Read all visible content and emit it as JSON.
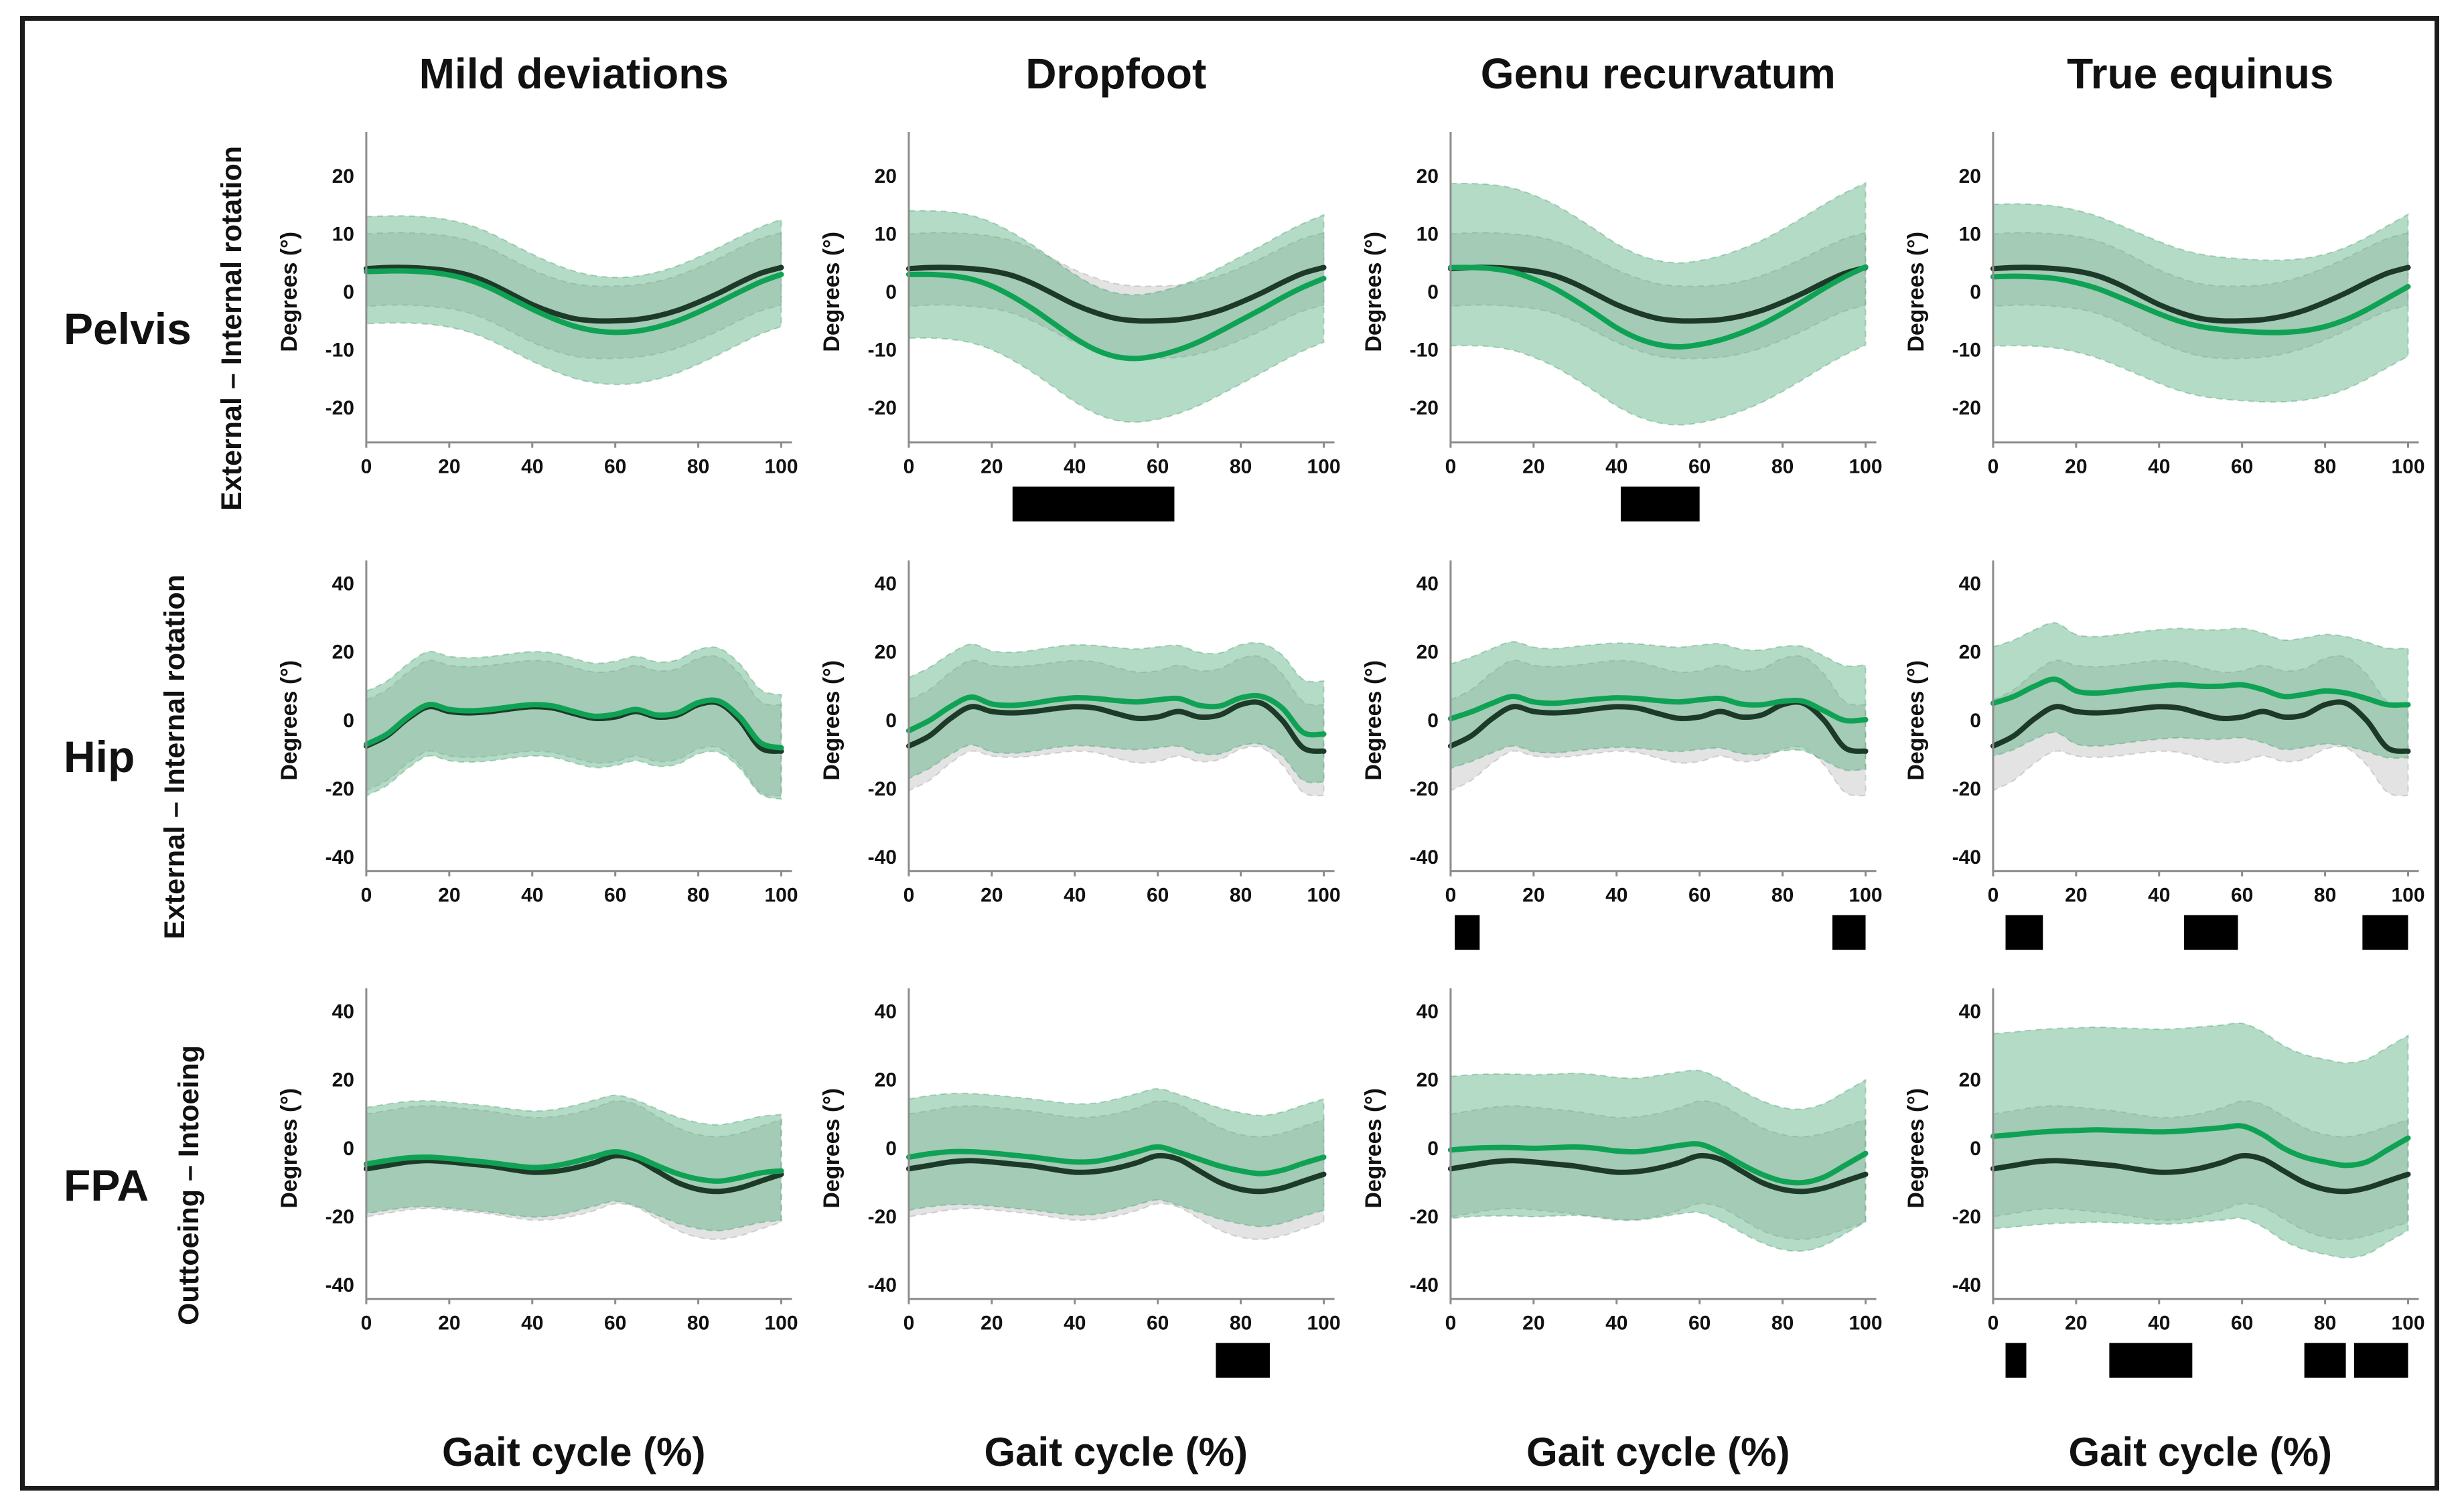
{
  "figure": {
    "columns": [
      "Mild deviations",
      "Dropfoot",
      "Genu recurvatum",
      "True equinus"
    ],
    "rows": [
      {
        "name": "Pelvis",
        "axis_label": "External – Internal rotation"
      },
      {
        "name": "Hip",
        "axis_label": "External – Internal rotation"
      },
      {
        "name": "FPA",
        "axis_label": "Outtoeing – Intoeing"
      }
    ],
    "xlabel": "Gait cycle (%)",
    "ylabel": "Degrees (°)",
    "colors": {
      "control_line": "#1d3a28",
      "patient_line": "#0fa254",
      "control_band": "#9e9e9e4a",
      "patient_band": "#53ad7b70",
      "significance_bar": "#000000",
      "axis": "#8c8c8c",
      "text": "#111111"
    }
  },
  "chart_common": {
    "x": [
      0,
      5,
      10,
      15,
      20,
      25,
      30,
      35,
      40,
      45,
      50,
      55,
      60,
      65,
      70,
      75,
      80,
      85,
      90,
      95,
      100
    ],
    "xlim": [
      0,
      100
    ],
    "xticks": [
      0,
      20,
      40,
      60,
      80,
      100
    ]
  },
  "chart_data": [
    {
      "row": "Pelvis",
      "column": "Mild deviations",
      "type": "line",
      "ylim": [
        -26,
        26
      ],
      "yticks": [
        -20,
        -10,
        0,
        10,
        20
      ],
      "series": [
        {
          "name": "control (black)",
          "values": [
            4.0,
            4.2,
            4.2,
            4.0,
            3.6,
            2.8,
            1.4,
            -0.4,
            -2.2,
            -3.6,
            -4.6,
            -5.0,
            -5.0,
            -4.8,
            -4.2,
            -3.2,
            -1.8,
            -0.2,
            1.6,
            3.2,
            4.2
          ],
          "band_below": 6.5,
          "band_above": 6.0
        },
        {
          "name": "patient (green)",
          "values": [
            3.5,
            3.6,
            3.6,
            3.4,
            2.9,
            2.0,
            0.6,
            -1.2,
            -3.0,
            -4.6,
            -5.9,
            -6.7,
            -7.0,
            -6.8,
            -6.1,
            -5.0,
            -3.5,
            -1.8,
            0.0,
            1.7,
            3.0
          ],
          "band_below": 9.0,
          "band_above": 9.5
        }
      ],
      "significance_bars": []
    },
    {
      "row": "Pelvis",
      "column": "Dropfoot",
      "type": "line",
      "ylim": [
        -26,
        26
      ],
      "yticks": [
        -20,
        -10,
        0,
        10,
        20
      ],
      "series": [
        {
          "name": "control (black)",
          "values": [
            4.0,
            4.2,
            4.2,
            4.0,
            3.6,
            2.8,
            1.4,
            -0.4,
            -2.2,
            -3.6,
            -4.6,
            -5.0,
            -5.0,
            -4.8,
            -4.2,
            -3.2,
            -1.8,
            -0.2,
            1.6,
            3.2,
            4.2
          ],
          "band_below": 6.5,
          "band_above": 6.0
        },
        {
          "name": "patient (green)",
          "values": [
            3.0,
            3.0,
            2.8,
            2.2,
            1.0,
            -0.8,
            -3.0,
            -5.5,
            -8.0,
            -10.0,
            -11.2,
            -11.5,
            -11.0,
            -10.0,
            -8.6,
            -6.8,
            -4.9,
            -3.0,
            -1.0,
            0.8,
            2.3
          ],
          "band_below": 11.0,
          "band_above": 11.0
        }
      ],
      "significance_bars": [
        [
          25,
          64
        ]
      ]
    },
    {
      "row": "Pelvis",
      "column": "Genu recurvatum",
      "type": "line",
      "ylim": [
        -26,
        26
      ],
      "yticks": [
        -20,
        -10,
        0,
        10,
        20
      ],
      "series": [
        {
          "name": "control (black)",
          "values": [
            4.0,
            4.2,
            4.2,
            4.0,
            3.6,
            2.8,
            1.4,
            -0.4,
            -2.2,
            -3.6,
            -4.6,
            -5.0,
            -5.0,
            -4.8,
            -4.2,
            -3.2,
            -1.8,
            -0.2,
            1.6,
            3.2,
            4.2
          ],
          "band_below": 6.5,
          "band_above": 6.0
        },
        {
          "name": "patient (green)",
          "values": [
            4.2,
            4.2,
            4.0,
            3.4,
            2.2,
            0.6,
            -1.5,
            -3.8,
            -6.2,
            -8.0,
            -9.1,
            -9.5,
            -9.1,
            -8.3,
            -7.1,
            -5.6,
            -3.7,
            -1.6,
            0.6,
            2.6,
            4.3
          ],
          "band_below": 13.5,
          "band_above": 14.5
        }
      ],
      "significance_bars": [
        [
          41,
          60
        ]
      ]
    },
    {
      "row": "Pelvis",
      "column": "True equinus",
      "type": "line",
      "ylim": [
        -26,
        26
      ],
      "yticks": [
        -20,
        -10,
        0,
        10,
        20
      ],
      "series": [
        {
          "name": "control (black)",
          "values": [
            4.0,
            4.2,
            4.2,
            4.0,
            3.6,
            2.8,
            1.4,
            -0.4,
            -2.2,
            -3.6,
            -4.6,
            -5.0,
            -5.0,
            -4.8,
            -4.2,
            -3.2,
            -1.8,
            -0.2,
            1.6,
            3.2,
            4.2
          ],
          "band_below": 6.5,
          "band_above": 6.0
        },
        {
          "name": "patient (green)",
          "values": [
            2.6,
            2.7,
            2.6,
            2.3,
            1.6,
            0.6,
            -0.8,
            -2.3,
            -3.8,
            -5.1,
            -6.0,
            -6.5,
            -6.8,
            -7.0,
            -7.0,
            -6.7,
            -6.0,
            -4.8,
            -3.1,
            -1.1,
            0.9
          ],
          "band_below": 12.0,
          "band_above": 12.5
        }
      ],
      "significance_bars": []
    },
    {
      "row": "Hip",
      "column": "Mild deviations",
      "type": "line",
      "ylim": [
        -44,
        44
      ],
      "yticks": [
        -40,
        -20,
        0,
        20,
        40
      ],
      "series": [
        {
          "name": "control (black)",
          "values": [
            -7.5,
            -4.5,
            0.5,
            4.0,
            2.6,
            2.2,
            2.6,
            3.4,
            4.0,
            3.6,
            2.0,
            0.6,
            1.0,
            2.6,
            1.0,
            1.6,
            4.6,
            5.0,
            0.0,
            -8.0,
            -9.0
          ],
          "band_below": 13.0,
          "band_above": 13.5
        },
        {
          "name": "patient (green)",
          "values": [
            -7.0,
            -4.0,
            1.0,
            4.6,
            3.2,
            2.8,
            3.2,
            4.0,
            4.6,
            4.2,
            2.6,
            1.2,
            1.8,
            3.2,
            1.6,
            2.2,
            5.2,
            5.6,
            1.0,
            -6.5,
            -8.0
          ],
          "band_below": 15.0,
          "band_above": 15.5
        }
      ],
      "significance_bars": []
    },
    {
      "row": "Hip",
      "column": "Dropfoot",
      "type": "line",
      "ylim": [
        -44,
        44
      ],
      "yticks": [
        -40,
        -20,
        0,
        20,
        40
      ],
      "series": [
        {
          "name": "control (black)",
          "values": [
            -7.5,
            -4.5,
            0.5,
            4.0,
            2.6,
            2.2,
            2.6,
            3.4,
            4.0,
            3.6,
            2.0,
            0.6,
            1.0,
            2.6,
            1.0,
            1.6,
            4.6,
            5.0,
            0.0,
            -8.0,
            -9.0
          ],
          "band_below": 13.0,
          "band_above": 13.5
        },
        {
          "name": "patient (green)",
          "values": [
            -3.0,
            0.0,
            4.0,
            6.8,
            4.8,
            4.4,
            5.0,
            6.0,
            6.6,
            6.4,
            5.8,
            5.4,
            6.0,
            6.4,
            4.4,
            4.2,
            6.6,
            7.0,
            3.6,
            -3.5,
            -4.0
          ],
          "band_below": 14.0,
          "band_above": 15.5
        }
      ],
      "significance_bars": []
    },
    {
      "row": "Hip",
      "column": "Genu recurvatum",
      "type": "line",
      "ylim": [
        -44,
        44
      ],
      "yticks": [
        -40,
        -20,
        0,
        20,
        40
      ],
      "series": [
        {
          "name": "control (black)",
          "values": [
            -7.5,
            -4.5,
            0.5,
            4.0,
            2.6,
            2.2,
            2.6,
            3.4,
            4.0,
            3.6,
            2.0,
            0.6,
            1.0,
            2.6,
            1.0,
            1.6,
            4.6,
            5.0,
            0.0,
            -8.0,
            -9.0
          ],
          "band_below": 13.0,
          "band_above": 13.5
        },
        {
          "name": "patient (green)",
          "values": [
            0.5,
            2.5,
            5.0,
            7.0,
            5.4,
            5.0,
            5.6,
            6.2,
            6.6,
            6.4,
            5.8,
            5.4,
            6.0,
            6.4,
            4.8,
            4.6,
            5.6,
            5.6,
            2.8,
            0.0,
            0.2
          ],
          "band_below": 14.5,
          "band_above": 16.0
        }
      ],
      "significance_bars": [
        [
          1,
          7
        ],
        [
          92,
          100
        ]
      ]
    },
    {
      "row": "Hip",
      "column": "True equinus",
      "type": "line",
      "ylim": [
        -44,
        44
      ],
      "yticks": [
        -40,
        -20,
        0,
        20,
        40
      ],
      "series": [
        {
          "name": "control (black)",
          "values": [
            -7.5,
            -4.5,
            0.5,
            4.0,
            2.6,
            2.2,
            2.6,
            3.4,
            4.0,
            3.6,
            2.0,
            0.6,
            1.0,
            2.6,
            1.0,
            1.6,
            4.6,
            5.0,
            0.0,
            -8.0,
            -9.0
          ],
          "band_below": 13.0,
          "band_above": 13.5
        },
        {
          "name": "patient (green)",
          "values": [
            5.0,
            7.0,
            10.0,
            12.0,
            8.6,
            8.0,
            8.6,
            9.4,
            10.0,
            10.4,
            10.0,
            10.0,
            10.4,
            9.0,
            7.0,
            7.6,
            8.6,
            8.0,
            6.4,
            4.6,
            4.6
          ],
          "band_below": 15.5,
          "band_above": 16.5
        }
      ],
      "significance_bars": [
        [
          3,
          12
        ],
        [
          46,
          59
        ],
        [
          89,
          100
        ]
      ]
    },
    {
      "row": "FPA",
      "column": "Mild deviations",
      "type": "line",
      "ylim": [
        -44,
        44
      ],
      "yticks": [
        -40,
        -20,
        0,
        20,
        40
      ],
      "series": [
        {
          "name": "control (black)",
          "values": [
            -6.0,
            -5.0,
            -4.0,
            -3.6,
            -4.0,
            -4.6,
            -5.2,
            -6.2,
            -7.0,
            -6.8,
            -5.8,
            -4.2,
            -2.2,
            -3.2,
            -6.6,
            -10.0,
            -12.0,
            -12.6,
            -11.6,
            -9.6,
            -7.6
          ],
          "band_below": 14.0,
          "band_above": 16.0
        },
        {
          "name": "patient (green)",
          "values": [
            -4.6,
            -3.6,
            -2.8,
            -2.6,
            -3.0,
            -3.6,
            -4.2,
            -5.0,
            -5.6,
            -5.2,
            -4.0,
            -2.4,
            -1.0,
            -2.4,
            -5.0,
            -7.4,
            -9.0,
            -9.6,
            -8.6,
            -7.2,
            -6.6
          ],
          "band_below": 14.5,
          "band_above": 16.5
        }
      ],
      "significance_bars": []
    },
    {
      "row": "FPA",
      "column": "Dropfoot",
      "type": "line",
      "ylim": [
        -44,
        44
      ],
      "yticks": [
        -40,
        -20,
        0,
        20,
        40
      ],
      "series": [
        {
          "name": "control (black)",
          "values": [
            -6.0,
            -5.0,
            -4.0,
            -3.6,
            -4.0,
            -4.6,
            -5.2,
            -6.2,
            -7.0,
            -6.8,
            -5.8,
            -4.2,
            -2.2,
            -3.2,
            -6.6,
            -10.0,
            -12.0,
            -12.6,
            -11.6,
            -9.6,
            -7.6
          ],
          "band_below": 14.0,
          "band_above": 16.0
        },
        {
          "name": "patient (green)",
          "values": [
            -2.6,
            -1.6,
            -1.0,
            -1.0,
            -1.4,
            -2.0,
            -2.6,
            -3.4,
            -4.0,
            -3.8,
            -2.6,
            -1.0,
            0.4,
            -1.2,
            -3.2,
            -5.2,
            -6.6,
            -7.4,
            -6.4,
            -4.4,
            -2.6
          ],
          "band_below": 15.5,
          "band_above": 17.0
        }
      ],
      "significance_bars": [
        [
          74,
          87
        ]
      ]
    },
    {
      "row": "FPA",
      "column": "Genu recurvatum",
      "type": "line",
      "ylim": [
        -44,
        44
      ],
      "yticks": [
        -40,
        -20,
        0,
        20,
        40
      ],
      "series": [
        {
          "name": "control (black)",
          "values": [
            -6.0,
            -5.0,
            -4.0,
            -3.6,
            -4.0,
            -4.6,
            -5.2,
            -6.2,
            -7.0,
            -6.8,
            -5.8,
            -4.2,
            -2.2,
            -3.2,
            -6.6,
            -10.0,
            -12.0,
            -12.6,
            -11.6,
            -9.6,
            -7.6
          ],
          "band_below": 14.0,
          "band_above": 16.0
        },
        {
          "name": "patient (green)",
          "values": [
            -0.5,
            0.0,
            0.2,
            0.2,
            0.0,
            0.2,
            0.4,
            0.0,
            -0.8,
            -1.0,
            -0.2,
            0.8,
            1.2,
            -1.2,
            -4.6,
            -7.6,
            -9.6,
            -10.0,
            -8.4,
            -5.0,
            -1.5
          ],
          "band_below": 20.0,
          "band_above": 21.5
        }
      ],
      "significance_bars": []
    },
    {
      "row": "FPA",
      "column": "True equinus",
      "type": "line",
      "ylim": [
        -44,
        44
      ],
      "yticks": [
        -40,
        -20,
        0,
        20,
        40
      ],
      "series": [
        {
          "name": "control (black)",
          "values": [
            -6.0,
            -5.0,
            -4.0,
            -3.6,
            -4.0,
            -4.6,
            -5.2,
            -6.2,
            -7.0,
            -6.8,
            -5.8,
            -4.2,
            -2.2,
            -3.2,
            -6.6,
            -10.0,
            -12.0,
            -12.6,
            -11.6,
            -9.6,
            -7.6
          ],
          "band_below": 14.0,
          "band_above": 16.0
        },
        {
          "name": "patient (green)",
          "values": [
            3.5,
            4.0,
            4.6,
            5.0,
            5.2,
            5.4,
            5.2,
            5.0,
            4.8,
            5.0,
            5.5,
            6.0,
            6.5,
            4.0,
            0.0,
            -2.6,
            -4.0,
            -5.0,
            -4.0,
            -0.5,
            3.0
          ],
          "band_below": 27.0,
          "band_above": 30.0
        }
      ],
      "significance_bars": [
        [
          3,
          8
        ],
        [
          28,
          48
        ],
        [
          75,
          85
        ],
        [
          87,
          100
        ]
      ]
    }
  ]
}
